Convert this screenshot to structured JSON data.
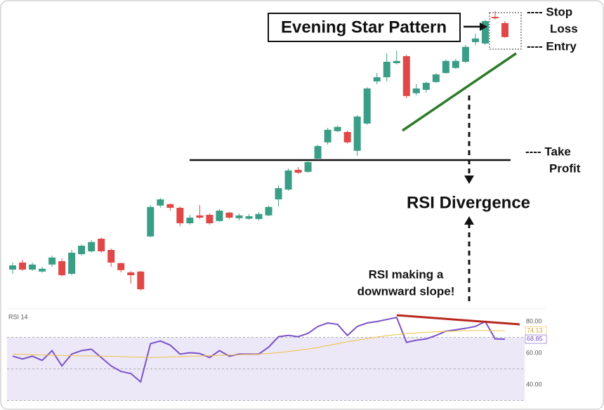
{
  "chart_data": [
    {
      "type": "candlestick",
      "x": [
        0,
        1,
        2,
        3,
        4,
        5,
        6,
        7,
        8,
        9,
        10,
        11,
        12,
        13,
        14,
        15,
        16,
        17,
        18,
        19,
        20,
        21,
        22,
        23,
        24,
        25,
        26,
        27,
        28,
        29,
        30,
        31,
        32,
        33,
        34,
        35,
        36,
        37,
        38,
        39,
        40,
        41,
        42,
        43,
        44,
        45,
        46,
        47,
        48,
        49,
        50
      ],
      "xlim": [
        -1,
        52
      ],
      "open": [
        14,
        16.5,
        14,
        13.3,
        15.8,
        17,
        12.5,
        19.5,
        20.5,
        25,
        21,
        16.3,
        13,
        13.3,
        25.8,
        36.8,
        37.3,
        36,
        30.5,
        33.3,
        33.5,
        31.3,
        34.3,
        32.3,
        32.1,
        32,
        33.3,
        39,
        42.5,
        49.5,
        48.8,
        53.5,
        59.3,
        63.3,
        63,
        56.3,
        66,
        81,
        82.5,
        87.5,
        90,
        76.8,
        78,
        80.8,
        84,
        85.8,
        88,
        95,
        94.5,
        104,
        101.8
      ],
      "close": [
        15.5,
        14,
        15.8,
        14.3,
        18.3,
        12,
        20,
        22.5,
        23.8,
        20.5,
        16.5,
        13.8,
        12,
        7,
        36.3,
        39,
        36,
        30.5,
        32.5,
        32.5,
        30.5,
        35,
        32.5,
        33.3,
        33,
        33.8,
        36.3,
        43,
        49.3,
        48.5,
        52.3,
        58,
        63.8,
        64.8,
        59.3,
        68.5,
        78.5,
        82.5,
        88,
        88.3,
        75.8,
        78.5,
        80.5,
        83.5,
        88.3,
        88.3,
        93.3,
        96.3,
        102.5,
        103.5,
        96.8
      ],
      "high": [
        16.5,
        17.5,
        16.5,
        15,
        19,
        18,
        21,
        23,
        24.5,
        25.5,
        21.5,
        16.5,
        13.5,
        13.5,
        37,
        39.5,
        37.5,
        36.5,
        33.5,
        37,
        34,
        35.5,
        34.5,
        34,
        33.8,
        34.5,
        36.8,
        44,
        50,
        50.5,
        52.8,
        58.5,
        64.5,
        65.3,
        63.5,
        69,
        79,
        84,
        91,
        92,
        90.5,
        80,
        81,
        84,
        88.8,
        89,
        94,
        98,
        103,
        106,
        102.5
      ],
      "low": [
        12.5,
        13.5,
        13.5,
        12.8,
        15,
        11.5,
        12,
        19,
        20,
        20,
        15,
        13,
        9,
        6.5,
        25.5,
        36,
        35,
        29.5,
        30,
        32,
        30,
        31,
        32,
        31.5,
        31.8,
        31.5,
        33,
        36.5,
        42,
        48,
        48.5,
        53,
        58.5,
        63,
        58.8,
        54.5,
        65.5,
        80,
        81,
        87,
        75,
        76,
        77,
        80.5,
        83.8,
        85.5,
        87.5,
        94,
        94,
        103,
        96.5
      ],
      "up_color": "#3a9e86",
      "down_color": "#e04848",
      "ylim": [
        0,
        110
      ]
    },
    {
      "type": "line",
      "title": "RSI 14",
      "x": [
        0,
        1,
        2,
        3,
        4,
        5,
        6,
        7,
        8,
        9,
        10,
        11,
        12,
        13,
        14,
        15,
        16,
        17,
        18,
        19,
        20,
        21,
        22,
        23,
        24,
        25,
        26,
        27,
        28,
        29,
        30,
        31,
        32,
        33,
        34,
        35,
        36,
        37,
        38,
        39,
        40,
        41,
        42,
        43,
        44,
        45,
        46,
        47,
        48,
        49,
        50
      ],
      "xlim": [
        -1,
        52
      ],
      "series": [
        {
          "color": "#7a52c7",
          "values": [
            58.1,
            56.3,
            58.1,
            55.4,
            61.6,
            51.9,
            59.4,
            61.6,
            62.5,
            57.2,
            51.9,
            48.4,
            47.1,
            41.8,
            66,
            67.7,
            65.1,
            59.4,
            60.3,
            59.8,
            57.2,
            61.6,
            58.1,
            59.4,
            59.4,
            59.4,
            63.8,
            70.4,
            71.2,
            70.4,
            72.5,
            76.9,
            79.1,
            78.2,
            71.2,
            76.9,
            79.1,
            80,
            81.3,
            82.6,
            66.8,
            68.2,
            69,
            71.2,
            73.9,
            74.8,
            75.7,
            76.9,
            80,
            69,
            68.85
          ]
        },
        {
          "color": "#f0c040",
          "values": [
            59.4,
            59.2,
            59,
            58.8,
            58.7,
            58.5,
            58.4,
            58.3,
            58.2,
            58.1,
            58,
            57.8,
            57.6,
            57.4,
            57.2,
            57.4,
            57.6,
            57.8,
            58,
            58.2,
            58.4,
            58.6,
            58.8,
            59,
            59.2,
            59.4,
            59.8,
            60.4,
            61,
            61.8,
            62.6,
            63.6,
            64.8,
            66,
            67.2,
            68.2,
            69.2,
            70.2,
            71,
            71.8,
            72.4,
            72.8,
            73.2,
            73.5,
            73.8,
            74,
            74.2,
            74.3,
            74.3,
            74.2,
            74.13
          ]
        }
      ],
      "ylim": [
        28,
        88
      ],
      "yticks": [
        {
          "value": 80,
          "label": "80.00"
        },
        {
          "value": 60,
          "label": "60.00"
        },
        {
          "value": 40,
          "label": "40.00"
        }
      ],
      "band": [
        30,
        70
      ],
      "band_color": "#ece8f8",
      "dashed_levels": [
        70,
        50,
        30
      ]
    }
  ],
  "annotations": {
    "pattern": "Evening Star Pattern",
    "stop_loss": [
      "---- Stop",
      "Loss"
    ],
    "entry": "---- Entry",
    "take_profit": [
      "---- Take",
      "Profit"
    ],
    "take_profit_level": 53,
    "divergence": "RSI Divergence",
    "slope_note": [
      "RSI making a",
      "downward slope!"
    ]
  }
}
